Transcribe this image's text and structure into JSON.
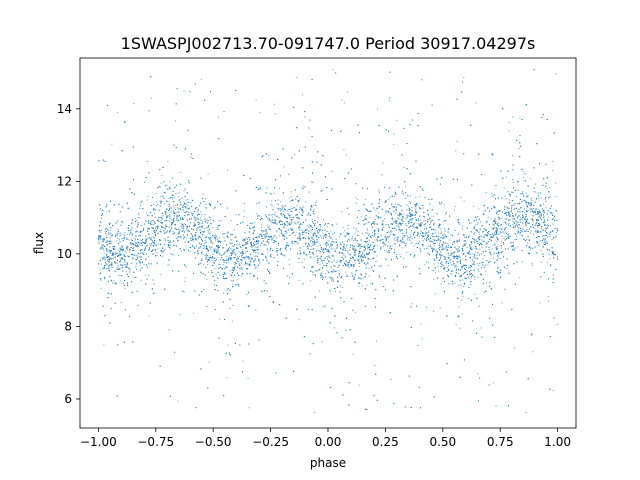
{
  "chart_data": {
    "type": "scatter",
    "title": "1SWASPJ002713.70-091747.0 Period 30917.04297s",
    "xlabel": "phase",
    "ylabel": "flux",
    "xlim": [
      -1.08,
      1.08
    ],
    "ylim": [
      5.2,
      15.4
    ],
    "x_ticks": [
      -1.0,
      -0.75,
      -0.5,
      -0.25,
      0.0,
      0.25,
      0.5,
      0.75,
      1.0
    ],
    "x_tick_labels": [
      "−1.00",
      "−0.75",
      "−0.50",
      "−0.25",
      "0.00",
      "0.25",
      "0.50",
      "0.75",
      "1.00"
    ],
    "y_ticks": [
      6,
      8,
      10,
      12,
      14
    ],
    "y_tick_labels": [
      "6",
      "8",
      "10",
      "12",
      "14"
    ],
    "grid": false,
    "marker_color": "#1f77b4",
    "x_range": [
      -1.0,
      1.0
    ],
    "trend": {
      "x": [
        -1.0,
        -0.9,
        -0.8,
        -0.7,
        -0.65,
        -0.6,
        -0.5,
        -0.45,
        -0.4,
        -0.3,
        -0.2,
        -0.15,
        -0.1,
        0.0,
        0.05,
        0.1,
        0.2,
        0.3,
        0.35,
        0.4,
        0.5,
        0.55,
        0.6,
        0.7,
        0.8,
        0.85,
        0.9,
        1.0
      ],
      "y": [
        10.1,
        10.0,
        10.4,
        10.9,
        11.0,
        10.8,
        10.1,
        9.8,
        9.85,
        10.3,
        10.8,
        10.9,
        10.7,
        10.0,
        9.85,
        9.9,
        10.4,
        10.9,
        11.0,
        10.85,
        10.1,
        9.8,
        9.85,
        10.4,
        10.9,
        11.0,
        10.95,
        10.3
      ]
    },
    "core_spread": 0.45,
    "outlier_range": [
      5.6,
      15.1
    ],
    "point_count": 9000
  }
}
